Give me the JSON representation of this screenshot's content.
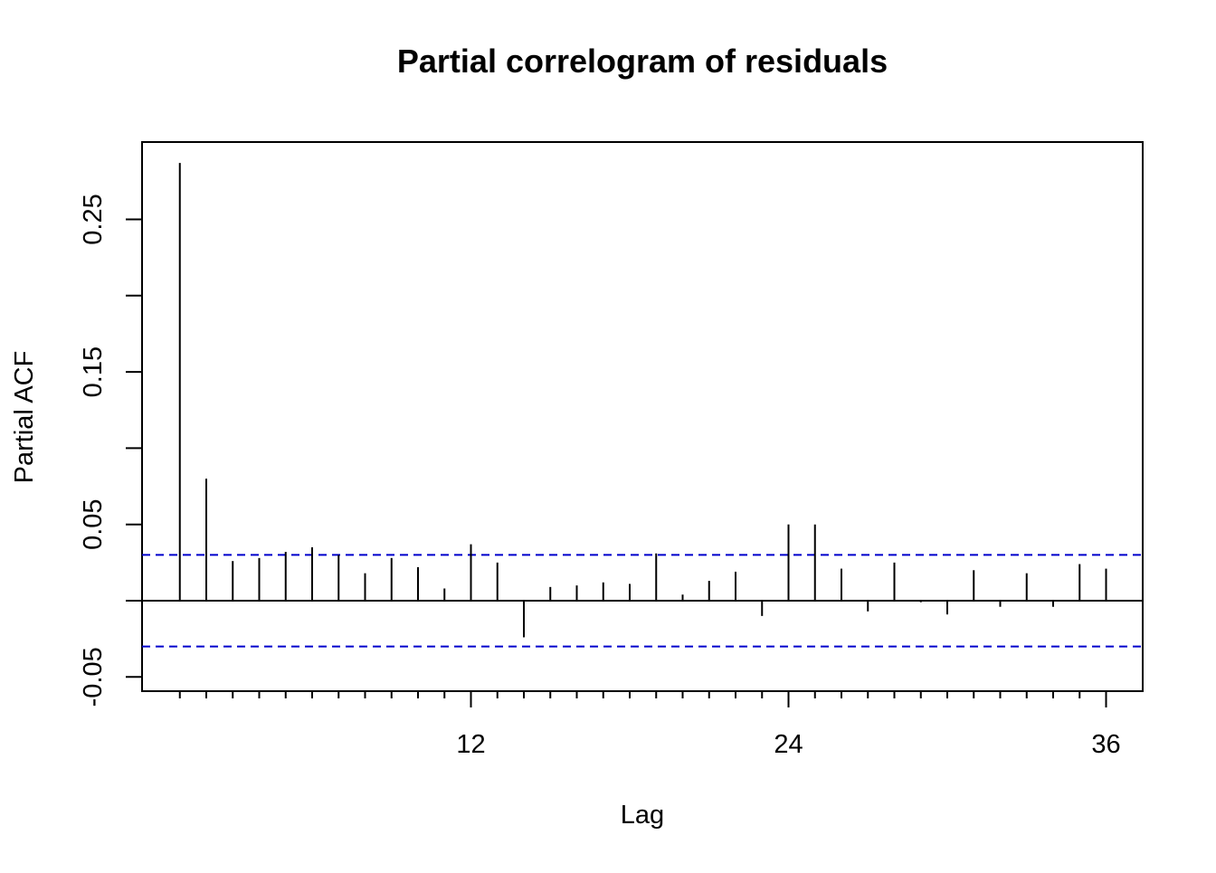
{
  "chart_data": {
    "type": "bar",
    "title": "Partial correlogram of residuals",
    "xlabel": "Lag",
    "ylabel": "Partial ACF",
    "xlim": [
      0,
      37.4
    ],
    "ylim": [
      -0.06,
      0.3
    ],
    "x_ticks_minor": [
      1,
      2,
      3,
      4,
      5,
      6,
      7,
      8,
      9,
      10,
      11,
      12,
      13,
      14,
      15,
      16,
      17,
      18,
      19,
      20,
      21,
      22,
      23,
      24,
      25,
      26,
      27,
      28,
      29,
      30,
      31,
      32,
      33,
      34,
      35,
      36
    ],
    "x_tick_labels": [
      {
        "value": 12,
        "label": "12"
      },
      {
        "value": 24,
        "label": "24"
      },
      {
        "value": 36,
        "label": "36"
      }
    ],
    "y_ticks": [
      -0.05,
      0.0,
      0.05,
      0.1,
      0.15,
      0.2,
      0.25
    ],
    "y_tick_labels": [
      {
        "value": -0.05,
        "label": "-0.05"
      },
      {
        "value": 0.05,
        "label": "0.05"
      },
      {
        "value": 0.15,
        "label": "0.15"
      },
      {
        "value": 0.25,
        "label": "0.25"
      }
    ],
    "confidence_bounds": [
      0.03,
      -0.03
    ],
    "series": [
      {
        "lags": [
          1,
          2,
          3,
          4,
          5,
          6,
          7,
          8,
          9,
          10,
          11,
          12,
          13,
          14,
          15,
          16,
          17,
          18,
          19,
          20,
          21,
          22,
          23,
          24,
          25,
          26,
          27,
          28,
          29,
          30,
          31,
          32,
          33,
          34,
          35,
          36
        ],
        "values": [
          0.287,
          0.08,
          0.026,
          0.028,
          0.032,
          0.035,
          0.03,
          0.018,
          0.028,
          0.022,
          0.008,
          0.037,
          0.025,
          -0.024,
          0.009,
          0.01,
          0.012,
          0.011,
          0.031,
          0.004,
          0.013,
          0.019,
          -0.01,
          0.05,
          0.05,
          0.021,
          -0.007,
          0.025,
          -0.001,
          -0.009,
          0.02,
          -0.004,
          0.018,
          -0.004,
          0.024,
          0.021
        ]
      }
    ],
    "colors": {
      "bars": "#000000",
      "confidence": "#0000cc",
      "axis": "#000000"
    }
  }
}
